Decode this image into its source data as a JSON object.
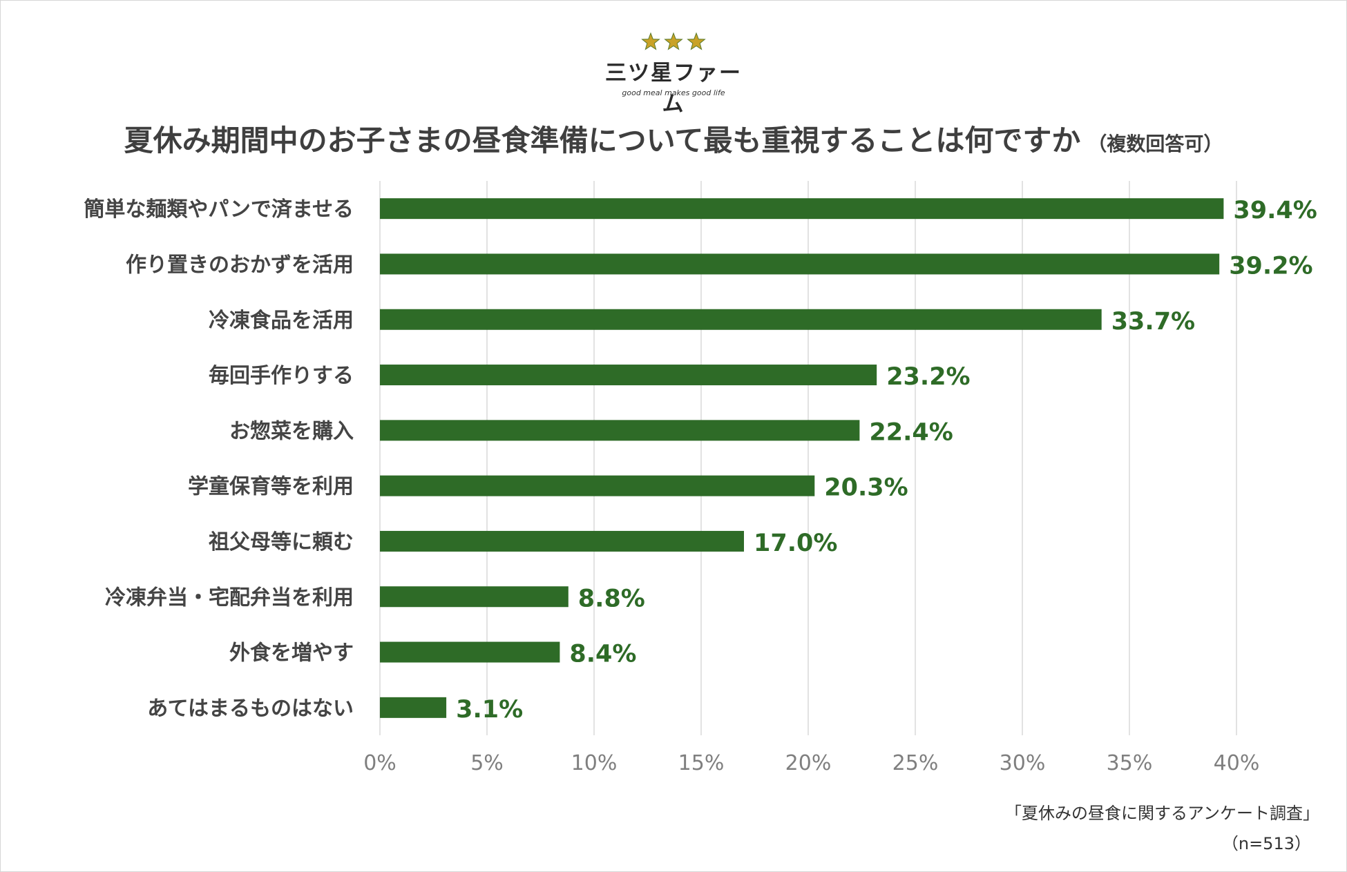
{
  "logo": {
    "stars": "★★★",
    "name": "三ツ星ファーム",
    "tagline": "good meal makes good life",
    "star_color": "#c9a227"
  },
  "chart_data": {
    "type": "bar",
    "orientation": "horizontal",
    "title": "夏休み期間中のお子さまの昼食準備について最も重視することは何ですか",
    "subtitle": "（複数回答可）",
    "categories": [
      "簡単な麺類やパンで済ませる",
      "作り置きのおかずを活用",
      "冷凍食品を活用",
      "毎回手作りする",
      "お惣菜を購入",
      "学童保育等を利用",
      "祖父母等に頼む",
      "冷凍弁当・宅配弁当を利用",
      "外食を増やす",
      "あてはまるものはない"
    ],
    "values": [
      39.4,
      39.2,
      33.7,
      23.2,
      22.4,
      20.3,
      17.0,
      8.8,
      8.4,
      3.1
    ],
    "value_labels": [
      "39.4%",
      "39.2%",
      "33.7%",
      "23.2%",
      "22.4%",
      "20.3%",
      "17.0%",
      "8.8%",
      "8.4%",
      "3.1%"
    ],
    "xlim": [
      0,
      40
    ],
    "xticks": [
      0,
      5,
      10,
      15,
      20,
      25,
      30,
      35,
      40
    ],
    "xtick_labels": [
      "0%",
      "5%",
      "10%",
      "15%",
      "20%",
      "25%",
      "30%",
      "35%",
      "40%"
    ],
    "grid": true,
    "bar_color": "#2e6b27",
    "label_color": "#2e6b27"
  },
  "footer": {
    "source": "「夏休みの昼食に関するアンケート調査」",
    "sample": "（n=513）"
  }
}
